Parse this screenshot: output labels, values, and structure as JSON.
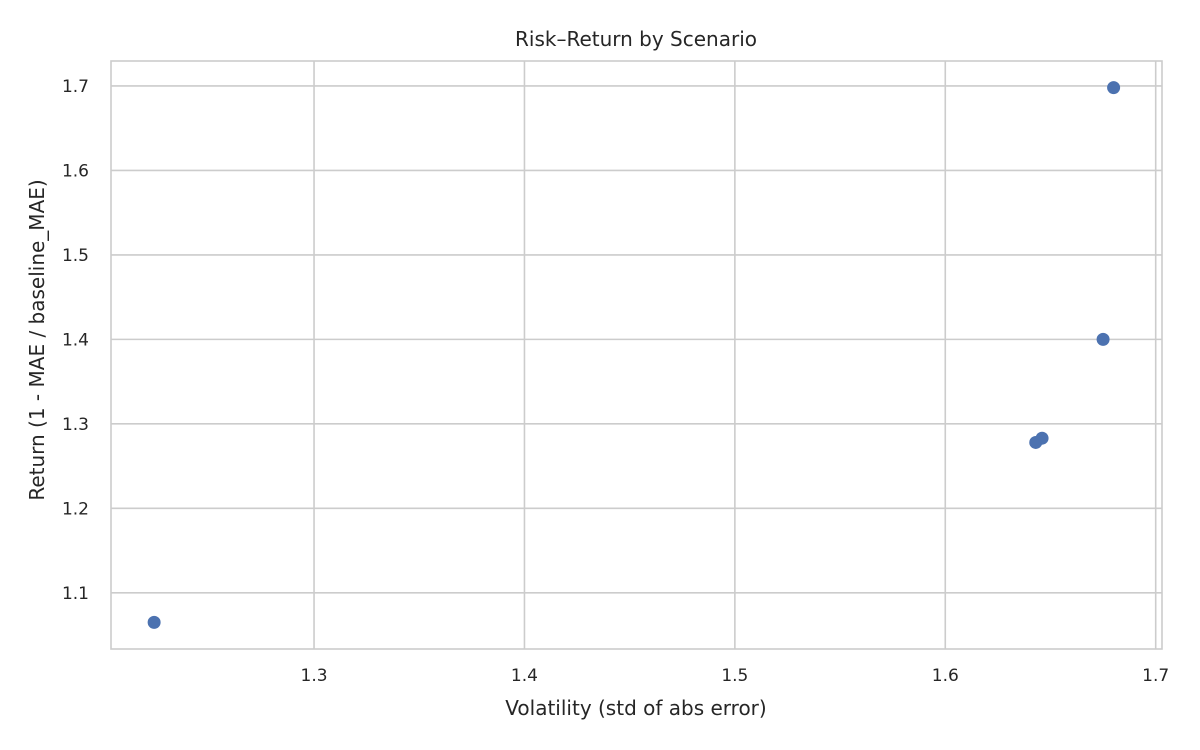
{
  "chart_data": {
    "type": "scatter",
    "title": "Risk–Return by Scenario",
    "xlabel": "Volatility (std of abs error)",
    "ylabel": "Return (1 - MAE / baseline_MAE)",
    "xlim": [
      1.2035,
      1.703
    ],
    "ylim": [
      1.0335,
      1.7295
    ],
    "xticks": [
      1.3,
      1.4,
      1.5,
      1.6,
      1.7
    ],
    "yticks": [
      1.1,
      1.2,
      1.3,
      1.4,
      1.5,
      1.6,
      1.7
    ],
    "grid": true,
    "series": [
      {
        "color": "#4c72b0",
        "points": [
          {
            "x": 1.224,
            "y": 1.065
          },
          {
            "x": 1.643,
            "y": 1.278
          },
          {
            "x": 1.646,
            "y": 1.283
          },
          {
            "x": 1.675,
            "y": 1.4
          },
          {
            "x": 1.68,
            "y": 1.698
          }
        ]
      }
    ]
  }
}
